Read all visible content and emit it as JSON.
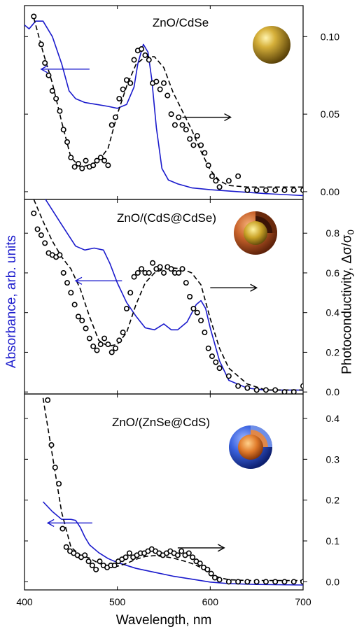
{
  "figure": {
    "xlabel": "Wavelength, nm",
    "ylabel_left": "Absorbance, arb. units",
    "ylabel_right_main": "Photoconductivity, Δσ/σ",
    "ylabel_right_sub": "0",
    "colors": {
      "absorbance": "#1a1acc",
      "photoconductivity": "#000000",
      "sphere_gold": "#c9a227",
      "shell_orange": "#c8622a",
      "shell_blue": "#3b63e0"
    }
  },
  "chart_data": [
    {
      "type": "line",
      "title": "ZnO/CdSe",
      "icon": "gold-sphere-icon",
      "xlim": [
        400,
        700
      ],
      "x_ticks": [
        400,
        500,
        600,
        700
      ],
      "ylim_right": [
        -0.005,
        0.12
      ],
      "y_ticks_right": [
        "0.00",
        "0.05",
        "0.10"
      ],
      "series": [
        {
          "role": "absorbance",
          "axis": "left",
          "style": "solid-blue",
          "x": [
            400,
            405,
            412,
            420,
            430,
            440,
            448,
            455,
            465,
            478,
            490,
            500,
            510,
            518,
            522,
            528,
            533,
            537,
            542,
            548,
            555,
            565,
            580,
            600,
            630,
            660,
            700
          ],
          "y": [
            0.88,
            0.86,
            0.9,
            0.9,
            0.82,
            0.68,
            0.54,
            0.5,
            0.48,
            0.47,
            0.46,
            0.45,
            0.47,
            0.56,
            0.68,
            0.78,
            0.74,
            0.6,
            0.35,
            0.14,
            0.08,
            0.06,
            0.04,
            0.03,
            0.02,
            0.01,
            0.0
          ]
        },
        {
          "role": "photoconductivity_fit",
          "axis": "right",
          "style": "dashed-black",
          "x": [
            410,
            420,
            430,
            440,
            450,
            460,
            470,
            480,
            490,
            500,
            510,
            520,
            530,
            540,
            550,
            560,
            570,
            580,
            590,
            600,
            610,
            620,
            640,
            660,
            700
          ],
          "y": [
            0.112,
            0.09,
            0.07,
            0.045,
            0.022,
            0.016,
            0.017,
            0.02,
            0.028,
            0.05,
            0.068,
            0.082,
            0.087,
            0.087,
            0.08,
            0.064,
            0.052,
            0.04,
            0.026,
            0.014,
            0.007,
            0.004,
            0.003,
            0.003,
            0.003
          ]
        },
        {
          "role": "photoconductivity_points",
          "axis": "right",
          "style": "open-circles",
          "x": [
            410,
            418,
            422,
            426,
            430,
            434,
            438,
            442,
            446,
            450,
            454,
            458,
            462,
            466,
            470,
            474,
            478,
            482,
            486,
            490,
            494,
            498,
            502,
            506,
            510,
            514,
            518,
            522,
            526,
            530,
            534,
            538,
            542,
            546,
            550,
            554,
            558,
            562,
            566,
            570,
            574,
            578,
            582,
            586,
            590,
            594,
            598,
            602,
            606,
            610,
            620,
            630,
            640,
            650,
            660,
            670,
            680,
            690,
            700
          ],
          "y": [
            0.113,
            0.095,
            0.083,
            0.075,
            0.065,
            0.06,
            0.052,
            0.04,
            0.032,
            0.022,
            0.016,
            0.018,
            0.015,
            0.02,
            0.016,
            0.017,
            0.02,
            0.022,
            0.02,
            0.017,
            0.043,
            0.048,
            0.06,
            0.066,
            0.072,
            0.07,
            0.085,
            0.091,
            0.092,
            0.088,
            0.085,
            0.07,
            0.071,
            0.066,
            0.07,
            0.062,
            0.05,
            0.043,
            0.048,
            0.043,
            0.04,
            0.034,
            0.03,
            0.036,
            0.03,
            0.025,
            0.017,
            0.01,
            0.007,
            0.003,
            0.007,
            0.01,
            0.001,
            0.001,
            0.001,
            0.001,
            0.001,
            0.001,
            0.001
          ]
        }
      ],
      "arrows": [
        {
          "direction": "left",
          "color": "blue",
          "x_from": 470,
          "x_to": 418,
          "y_right": 0.079
        },
        {
          "direction": "right",
          "color": "black",
          "x_from": 570,
          "x_to": 622,
          "y_right": 0.048
        }
      ]
    },
    {
      "type": "line",
      "title": "ZnO/(CdS@CdSe)",
      "icon": "core-shell-orange-icon",
      "xlim": [
        400,
        700
      ],
      "x_ticks": [
        400,
        500,
        600,
        700
      ],
      "ylim_right": [
        -0.01,
        0.97
      ],
      "y_ticks_right": [
        "0.0",
        "0.2",
        "0.4",
        "0.6",
        "0.8"
      ],
      "series": [
        {
          "role": "absorbance",
          "axis": "left",
          "style": "solid-blue",
          "x": [
            400,
            420,
            440,
            455,
            465,
            475,
            485,
            492,
            500,
            510,
            520,
            530,
            540,
            550,
            558,
            565,
            575,
            585,
            590,
            595,
            600,
            610,
            620,
            640,
            660,
            700
          ],
          "y": [
            1.2,
            1.0,
            0.85,
            0.74,
            0.72,
            0.73,
            0.72,
            0.65,
            0.55,
            0.45,
            0.38,
            0.32,
            0.31,
            0.34,
            0.31,
            0.31,
            0.35,
            0.44,
            0.46,
            0.42,
            0.32,
            0.15,
            0.05,
            0.01,
            0.0,
            0.0
          ]
        },
        {
          "role": "photoconductivity_fit",
          "axis": "right",
          "style": "dashed-black",
          "x": [
            410,
            420,
            430,
            440,
            450,
            460,
            470,
            480,
            490,
            500,
            510,
            520,
            530,
            540,
            550,
            560,
            570,
            580,
            590,
            600,
            610,
            620,
            640,
            660,
            700
          ],
          "y": [
            0.97,
            0.86,
            0.76,
            0.68,
            0.62,
            0.52,
            0.38,
            0.26,
            0.23,
            0.24,
            0.3,
            0.44,
            0.55,
            0.6,
            0.62,
            0.625,
            0.62,
            0.6,
            0.54,
            0.37,
            0.22,
            0.12,
            0.04,
            0.01,
            0.01
          ]
        },
        {
          "role": "photoconductivity_points",
          "axis": "right",
          "style": "open-circles",
          "x": [
            410,
            414,
            418,
            422,
            426,
            430,
            434,
            438,
            442,
            446,
            450,
            454,
            458,
            462,
            466,
            470,
            474,
            478,
            482,
            486,
            490,
            494,
            498,
            502,
            506,
            510,
            514,
            518,
            522,
            526,
            530,
            534,
            538,
            542,
            546,
            550,
            554,
            558,
            562,
            566,
            570,
            574,
            578,
            582,
            586,
            590,
            594,
            598,
            602,
            606,
            610,
            620,
            630,
            640,
            650,
            660,
            670,
            680,
            690,
            700
          ],
          "y": [
            0.9,
            0.82,
            0.79,
            0.75,
            0.7,
            0.69,
            0.68,
            0.69,
            0.6,
            0.55,
            0.5,
            0.44,
            0.38,
            0.36,
            0.32,
            0.27,
            0.23,
            0.21,
            0.24,
            0.27,
            0.24,
            0.2,
            0.22,
            0.26,
            0.3,
            0.42,
            0.5,
            0.58,
            0.6,
            0.62,
            0.6,
            0.6,
            0.65,
            0.62,
            0.63,
            0.6,
            0.63,
            0.62,
            0.6,
            0.6,
            0.62,
            0.55,
            0.48,
            0.42,
            0.4,
            0.36,
            0.3,
            0.22,
            0.18,
            0.15,
            0.12,
            0.08,
            0.03,
            0.02,
            0.01,
            0.01,
            0.01,
            0.0,
            0.0,
            0.03
          ]
        }
      ],
      "arrows": [
        {
          "direction": "left",
          "color": "blue",
          "x_from": 505,
          "x_to": 455,
          "y_right": 0.56
        },
        {
          "direction": "right",
          "color": "black",
          "x_from": 600,
          "x_to": 650,
          "y_right": 0.525
        }
      ]
    },
    {
      "type": "line",
      "title": "ZnO/(ZnSe@CdS)",
      "icon": "core-shell-blue-icon",
      "xlim": [
        400,
        700
      ],
      "x_ticks": [
        400,
        500,
        600,
        700
      ],
      "ylim_right": [
        -0.02,
        0.46
      ],
      "y_ticks_right": [
        "0.0",
        "0.1",
        "0.2",
        "0.3",
        "0.4"
      ],
      "series": [
        {
          "role": "absorbance",
          "axis": "left",
          "style": "solid-blue",
          "x": [
            420,
            430,
            440,
            445,
            450,
            455,
            460,
            465,
            470,
            480,
            490,
            500,
            520,
            540,
            560,
            580,
            600,
            620,
            650,
            700
          ],
          "y": [
            0.43,
            0.38,
            0.34,
            0.34,
            0.34,
            0.335,
            0.3,
            0.25,
            0.21,
            0.17,
            0.14,
            0.12,
            0.09,
            0.07,
            0.05,
            0.035,
            0.02,
            0.012,
            0.008,
            0.005
          ]
        },
        {
          "role": "photoconductivity_fit",
          "axis": "right",
          "style": "dashed-black",
          "x": [
            420,
            430,
            440,
            450,
            460,
            470,
            480,
            490,
            500,
            510,
            520,
            530,
            540,
            550,
            560,
            570,
            580,
            590,
            600,
            610,
            620,
            640,
            660,
            700
          ],
          "y": [
            0.45,
            0.31,
            0.17,
            0.085,
            0.065,
            0.058,
            0.045,
            0.04,
            0.038,
            0.045,
            0.055,
            0.062,
            0.064,
            0.062,
            0.058,
            0.052,
            0.045,
            0.035,
            0.02,
            0.01,
            0.005,
            0.003,
            0.003,
            0.003
          ]
        },
        {
          "role": "photoconductivity_points",
          "axis": "right",
          "style": "open-circles",
          "x": [
            425,
            429,
            433,
            437,
            441,
            445,
            449,
            453,
            457,
            461,
            465,
            469,
            473,
            477,
            481,
            485,
            489,
            493,
            497,
            501,
            505,
            509,
            513,
            517,
            521,
            525,
            529,
            533,
            537,
            541,
            545,
            549,
            553,
            557,
            561,
            565,
            569,
            573,
            577,
            581,
            585,
            589,
            593,
            597,
            601,
            605,
            610,
            620,
            630,
            640,
            650,
            660,
            670,
            680,
            690,
            700
          ],
          "y": [
            0.445,
            0.335,
            0.28,
            0.24,
            0.13,
            0.085,
            0.075,
            0.07,
            0.065,
            0.06,
            0.065,
            0.05,
            0.04,
            0.03,
            0.05,
            0.04,
            0.035,
            0.04,
            0.04,
            0.05,
            0.055,
            0.06,
            0.07,
            0.06,
            0.065,
            0.07,
            0.07,
            0.075,
            0.08,
            0.075,
            0.07,
            0.065,
            0.07,
            0.075,
            0.07,
            0.065,
            0.075,
            0.065,
            0.07,
            0.06,
            0.05,
            0.045,
            0.035,
            0.03,
            0.02,
            0.01,
            0.005,
            0.0,
            0.0,
            0.0,
            0.0,
            0.0,
            0.0,
            0.0,
            0.0,
            0.0
          ]
        }
      ],
      "arrows": [
        {
          "direction": "left",
          "color": "blue",
          "x_from": 473,
          "x_to": 425,
          "y_right": 0.144
        },
        {
          "direction": "right",
          "color": "black",
          "x_from": 565,
          "x_to": 615,
          "y_right": 0.083
        }
      ]
    }
  ]
}
